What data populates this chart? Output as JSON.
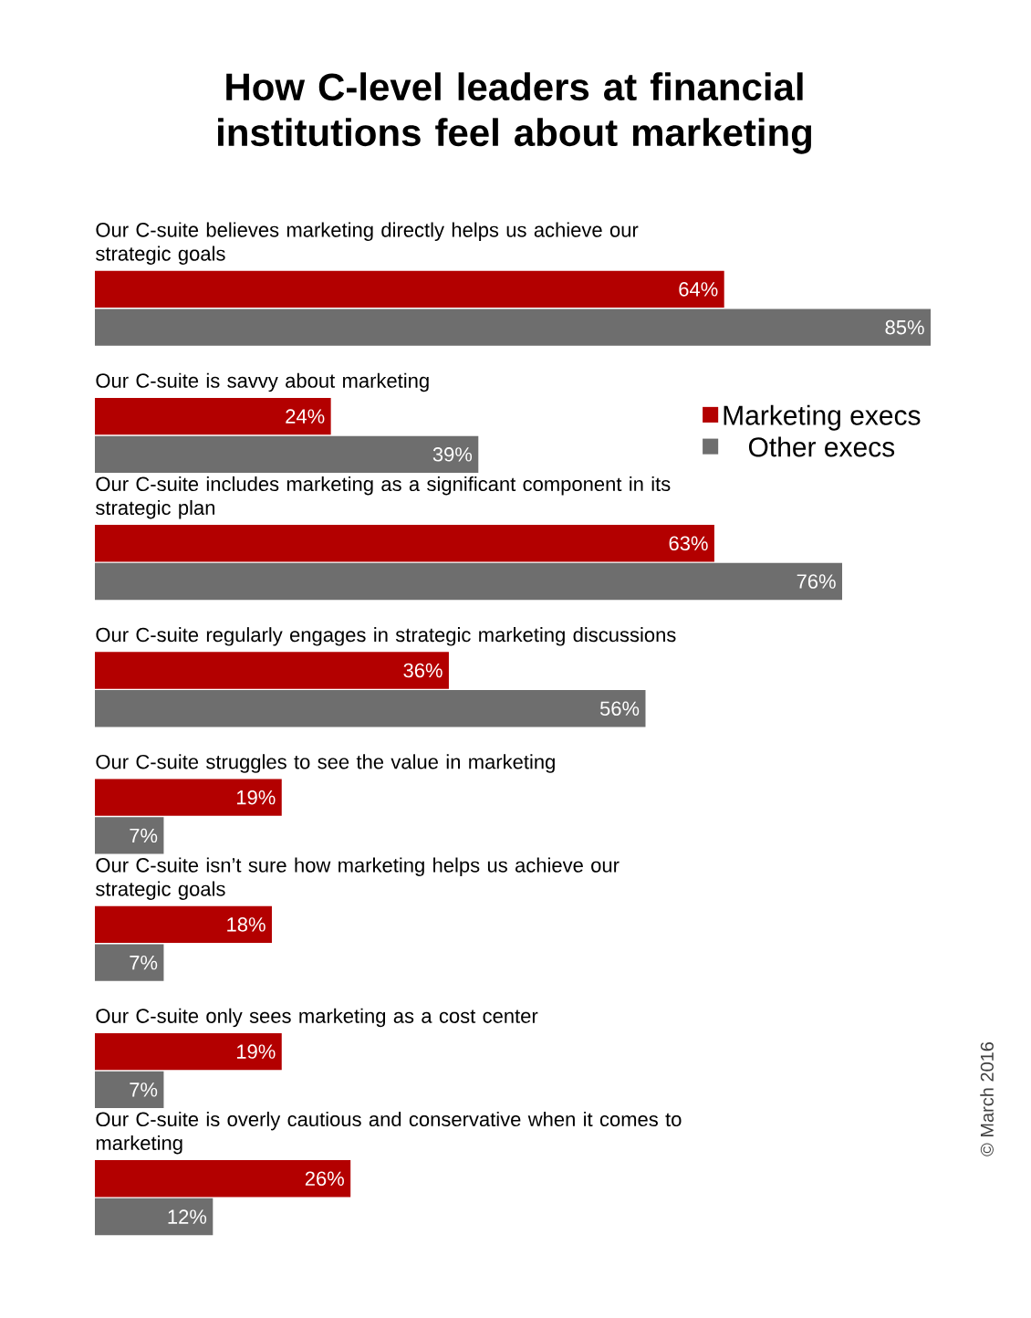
{
  "chart_data": {
    "type": "bar",
    "orientation": "horizontal",
    "title": "How C-level leaders at financial institutions feel about marketing",
    "categories": [
      "Our C-suite believes marketing directly helps us achieve our strategic goals",
      "Our C-suite is savvy about marketing",
      "Our C-suite includes marketing as a significant component in its strategic plan",
      "Our C-suite regularly engages in strategic marketing discussions",
      "Our C-suite struggles to see the value in marketing",
      "Our C-suite isn’t sure how marketing helps us achieve our strategic goals",
      "Our C-suite only sees marketing as a cost center",
      "Our C-suite is overly cautious and conservative when it comes to marketing"
    ],
    "series": [
      {
        "name": "Marketing execs",
        "color": "#b30000",
        "values": [
          64,
          24,
          63,
          36,
          19,
          18,
          19,
          26
        ],
        "value_labels": [
          "64%",
          "24%",
          "63%",
          "36%",
          "19%",
          "18%",
          "19%",
          "26%"
        ]
      },
      {
        "name": "Other execs",
        "color": "#6e6e6e",
        "values": [
          85,
          39,
          76,
          56,
          7,
          7,
          7,
          12
        ],
        "value_labels": [
          "85%",
          "39%",
          "76%",
          "56%",
          "7%",
          "7%",
          "7%",
          "12%"
        ]
      }
    ],
    "legend": "right",
    "annotations": [
      "© March 2016"
    ]
  }
}
